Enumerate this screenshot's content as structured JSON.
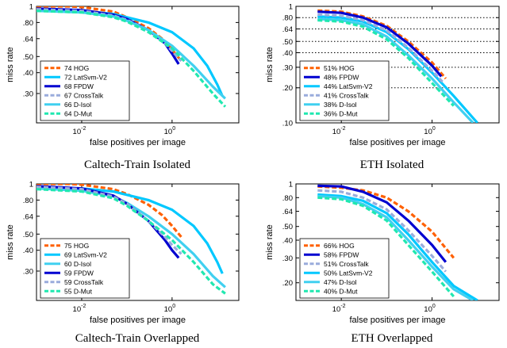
{
  "chart_data": [
    {
      "type": "line",
      "caption": "Caltech-Train Isolated",
      "xlabel": "false positives per image",
      "ylabel": "miss rate",
      "xscale": "log",
      "yscale": "log",
      "xlim": [
        0.001,
        30
      ],
      "ylim": [
        0.2,
        1
      ],
      "yticks": [
        1,
        0.8,
        0.64,
        0.5,
        0.4,
        0.3
      ],
      "ytick_labels": [
        "1",
        ".80",
        ".64",
        ".50",
        ".40",
        ".30"
      ],
      "xticks": [
        0.01,
        1
      ],
      "xtick_bases": [
        "10",
        "10"
      ],
      "xtick_exps": [
        "-2",
        "0"
      ],
      "legend_position": "bottom-left",
      "series": [
        {
          "name": "74 HOG",
          "color": "#ff6000",
          "dash": true,
          "x": [
            0.001,
            0.005,
            0.01,
            0.05,
            0.1,
            0.3,
            0.6,
            1.0,
            1.6
          ],
          "y": [
            1.0,
            1.0,
            0.99,
            0.93,
            0.86,
            0.74,
            0.64,
            0.55,
            0.47
          ]
        },
        {
          "name": "72 LatSvm-V2",
          "color": "#00c8ff",
          "dash": false,
          "x": [
            0.001,
            0.01,
            0.05,
            0.1,
            0.3,
            1.0,
            3.0,
            6.0,
            10.0,
            13.0
          ],
          "y": [
            0.95,
            0.94,
            0.9,
            0.86,
            0.8,
            0.7,
            0.56,
            0.44,
            0.34,
            0.29
          ]
        },
        {
          "name": "68 FPDW",
          "color": "#0000d0",
          "dash": false,
          "x": [
            0.001,
            0.01,
            0.05,
            0.1,
            0.3,
            0.7,
            1.0,
            1.4
          ],
          "y": [
            0.97,
            0.95,
            0.89,
            0.84,
            0.72,
            0.6,
            0.52,
            0.45
          ]
        },
        {
          "name": "67 CrossTalk",
          "color": "#9aacdc",
          "dash": true,
          "x": [
            0.001,
            0.01,
            0.05,
            0.1,
            0.3,
            0.7,
            1.0,
            1.6
          ],
          "y": [
            0.96,
            0.94,
            0.88,
            0.83,
            0.72,
            0.6,
            0.54,
            0.47
          ]
        },
        {
          "name": "66 D-Isol",
          "color": "#40d0f0",
          "dash": false,
          "x": [
            0.001,
            0.01,
            0.05,
            0.1,
            0.3,
            1.0,
            3.0,
            8.0,
            15.0
          ],
          "y": [
            0.94,
            0.92,
            0.87,
            0.82,
            0.72,
            0.58,
            0.44,
            0.33,
            0.28
          ]
        },
        {
          "name": "64 D-Mut",
          "color": "#20e8b0",
          "dash": true,
          "x": [
            0.001,
            0.01,
            0.05,
            0.1,
            0.3,
            1.0,
            3.0,
            8.0,
            15.0
          ],
          "y": [
            0.94,
            0.92,
            0.86,
            0.81,
            0.7,
            0.56,
            0.41,
            0.3,
            0.25
          ]
        }
      ]
    },
    {
      "type": "line",
      "caption": "ETH Isolated",
      "xlabel": "false positives per image",
      "ylabel": "miss rate",
      "xscale": "log",
      "yscale": "log",
      "xlim": [
        0.001,
        30
      ],
      "ylim": [
        0.1,
        1
      ],
      "yticks": [
        1,
        0.8,
        0.64,
        0.5,
        0.4,
        0.3,
        0.2,
        0.1
      ],
      "ytick_labels": [
        "1",
        ".80",
        ".64",
        ".50",
        ".40",
        ".30",
        ".20",
        ".10"
      ],
      "xticks": [
        0.01,
        1
      ],
      "xtick_bases": [
        "10",
        "10"
      ],
      "xtick_exps": [
        "-2",
        "0"
      ],
      "grid": "dotted horizontal",
      "legend_position": "bottom-left",
      "series": [
        {
          "name": "51% HOG",
          "color": "#ff6000",
          "dash": true,
          "x": [
            0.003,
            0.01,
            0.03,
            0.1,
            0.3,
            1.0,
            2.0
          ],
          "y": [
            0.92,
            0.9,
            0.82,
            0.68,
            0.5,
            0.33,
            0.24
          ]
        },
        {
          "name": "48% FPDW",
          "color": "#0000d0",
          "dash": false,
          "x": [
            0.003,
            0.01,
            0.03,
            0.1,
            0.3,
            1.0,
            1.6
          ],
          "y": [
            0.9,
            0.88,
            0.8,
            0.66,
            0.48,
            0.31,
            0.25
          ]
        },
        {
          "name": "44% LatSvm-V2",
          "color": "#00c8ff",
          "dash": false,
          "x": [
            0.003,
            0.01,
            0.03,
            0.1,
            0.3,
            1.0,
            3.0,
            10.0
          ],
          "y": [
            0.82,
            0.8,
            0.74,
            0.6,
            0.43,
            0.27,
            0.17,
            0.1
          ]
        },
        {
          "name": "41% CrossTalk",
          "color": "#9aacdc",
          "dash": true,
          "x": [
            0.003,
            0.01,
            0.03,
            0.1,
            0.3,
            1.0,
            1.8
          ],
          "y": [
            0.85,
            0.83,
            0.76,
            0.62,
            0.44,
            0.28,
            0.22
          ]
        },
        {
          "name": "38% D-Isol",
          "color": "#40d0f0",
          "dash": false,
          "x": [
            0.003,
            0.01,
            0.03,
            0.1,
            0.3,
            1.0,
            3.0,
            8.0
          ],
          "y": [
            0.78,
            0.76,
            0.7,
            0.55,
            0.38,
            0.24,
            0.15,
            0.1
          ]
        },
        {
          "name": "36% D-Mut",
          "color": "#20e8b0",
          "dash": true,
          "x": [
            0.003,
            0.01,
            0.03,
            0.1,
            0.3,
            1.0,
            3.0
          ],
          "y": [
            0.76,
            0.74,
            0.67,
            0.52,
            0.36,
            0.22,
            0.14
          ]
        }
      ]
    },
    {
      "type": "line",
      "caption": "Caltech-Train Overlapped",
      "xlabel": "false positives per image",
      "ylabel": "miss rate",
      "xscale": "log",
      "yscale": "log",
      "xlim": [
        0.001,
        30
      ],
      "ylim": [
        0.2,
        1
      ],
      "yticks": [
        1,
        0.8,
        0.64,
        0.5,
        0.4,
        0.3
      ],
      "ytick_labels": [
        "1",
        ".80",
        ".64",
        ".50",
        ".40",
        ".30"
      ],
      "xticks": [
        0.01,
        1
      ],
      "xtick_bases": [
        "10",
        "10"
      ],
      "xtick_exps": [
        "-2",
        "0"
      ],
      "legend_position": "bottom-left",
      "series": [
        {
          "name": "75 HOG",
          "color": "#ff6000",
          "dash": true,
          "x": [
            0.001,
            0.005,
            0.01,
            0.05,
            0.1,
            0.3,
            0.6,
            1.0,
            1.6
          ],
          "y": [
            1.0,
            1.0,
            0.99,
            0.93,
            0.87,
            0.75,
            0.65,
            0.56,
            0.48
          ]
        },
        {
          "name": "69 LatSvm-V2",
          "color": "#00c8ff",
          "dash": false,
          "x": [
            0.001,
            0.01,
            0.05,
            0.1,
            0.3,
            1.0,
            3.0,
            6.0,
            10.0,
            13.0
          ],
          "y": [
            0.95,
            0.94,
            0.9,
            0.86,
            0.8,
            0.7,
            0.56,
            0.44,
            0.34,
            0.29
          ]
        },
        {
          "name": "60 D-Isol",
          "color": "#40d0f0",
          "dash": false,
          "x": [
            0.001,
            0.01,
            0.05,
            0.1,
            0.3,
            1.0,
            3.0,
            8.0,
            15.0
          ],
          "y": [
            0.94,
            0.91,
            0.84,
            0.77,
            0.64,
            0.5,
            0.38,
            0.28,
            0.24
          ]
        },
        {
          "name": "59 FPDW",
          "color": "#0000d0",
          "dash": false,
          "x": [
            0.001,
            0.01,
            0.05,
            0.1,
            0.3,
            0.7,
            1.0,
            1.4
          ],
          "y": [
            0.97,
            0.94,
            0.85,
            0.76,
            0.6,
            0.46,
            0.4,
            0.36
          ]
        },
        {
          "name": "59 CrossTalk",
          "color": "#9aacdc",
          "dash": true,
          "x": [
            0.001,
            0.01,
            0.05,
            0.1,
            0.3,
            0.7,
            1.0,
            1.6
          ],
          "y": [
            0.96,
            0.93,
            0.84,
            0.76,
            0.6,
            0.48,
            0.43,
            0.38
          ]
        },
        {
          "name": "55 D-Mut",
          "color": "#20e8b0",
          "dash": true,
          "x": [
            0.001,
            0.01,
            0.05,
            0.1,
            0.3,
            1.0,
            3.0,
            8.0,
            15.0
          ],
          "y": [
            0.93,
            0.9,
            0.82,
            0.74,
            0.6,
            0.46,
            0.34,
            0.25,
            0.22
          ]
        }
      ]
    },
    {
      "type": "line",
      "caption": "ETH Overlapped",
      "xlabel": "false positives per image",
      "ylabel": "miss rate",
      "xscale": "log",
      "yscale": "log",
      "xlim": [
        0.001,
        30
      ],
      "ylim": [
        0.15,
        1
      ],
      "yticks": [
        1,
        0.8,
        0.64,
        0.5,
        0.4,
        0.3,
        0.2
      ],
      "ytick_labels": [
        "1",
        ".80",
        ".64",
        ".50",
        ".40",
        ".30",
        ".20"
      ],
      "xticks": [
        0.01,
        1
      ],
      "xtick_bases": [
        "10",
        "10"
      ],
      "xtick_exps": [
        "-2",
        "0"
      ],
      "legend_position": "bottom-left",
      "series": [
        {
          "name": "66% HOG",
          "color": "#ff6000",
          "dash": true,
          "x": [
            0.003,
            0.01,
            0.03,
            0.1,
            0.3,
            1.0,
            3.0
          ],
          "y": [
            0.96,
            0.94,
            0.9,
            0.8,
            0.64,
            0.46,
            0.3
          ]
        },
        {
          "name": "58% FPDW",
          "color": "#0000d0",
          "dash": false,
          "x": [
            0.003,
            0.01,
            0.03,
            0.1,
            0.3,
            1.0,
            2.0
          ],
          "y": [
            0.97,
            0.96,
            0.88,
            0.74,
            0.55,
            0.37,
            0.28
          ]
        },
        {
          "name": "51% CrossTalk",
          "color": "#9aacdc",
          "dash": true,
          "x": [
            0.003,
            0.01,
            0.03,
            0.1,
            0.3,
            1.0,
            2.0
          ],
          "y": [
            0.9,
            0.88,
            0.8,
            0.66,
            0.47,
            0.31,
            0.24
          ]
        },
        {
          "name": "50% LatSvm-V2",
          "color": "#00c8ff",
          "dash": false,
          "x": [
            0.003,
            0.01,
            0.03,
            0.1,
            0.3,
            1.0,
            3.0,
            10.0
          ],
          "y": [
            0.84,
            0.82,
            0.76,
            0.62,
            0.44,
            0.28,
            0.19,
            0.15
          ]
        },
        {
          "name": "47% D-Isol",
          "color": "#40d0f0",
          "dash": false,
          "x": [
            0.003,
            0.01,
            0.03,
            0.1,
            0.3,
            1.0,
            3.0,
            8.0
          ],
          "y": [
            0.82,
            0.8,
            0.72,
            0.58,
            0.4,
            0.26,
            0.18,
            0.15
          ]
        },
        {
          "name": "40% D-Mut",
          "color": "#20e8b0",
          "dash": true,
          "x": [
            0.003,
            0.01,
            0.03,
            0.1,
            0.3,
            1.0,
            3.0
          ],
          "y": [
            0.8,
            0.78,
            0.7,
            0.55,
            0.37,
            0.24,
            0.16
          ]
        }
      ]
    }
  ]
}
